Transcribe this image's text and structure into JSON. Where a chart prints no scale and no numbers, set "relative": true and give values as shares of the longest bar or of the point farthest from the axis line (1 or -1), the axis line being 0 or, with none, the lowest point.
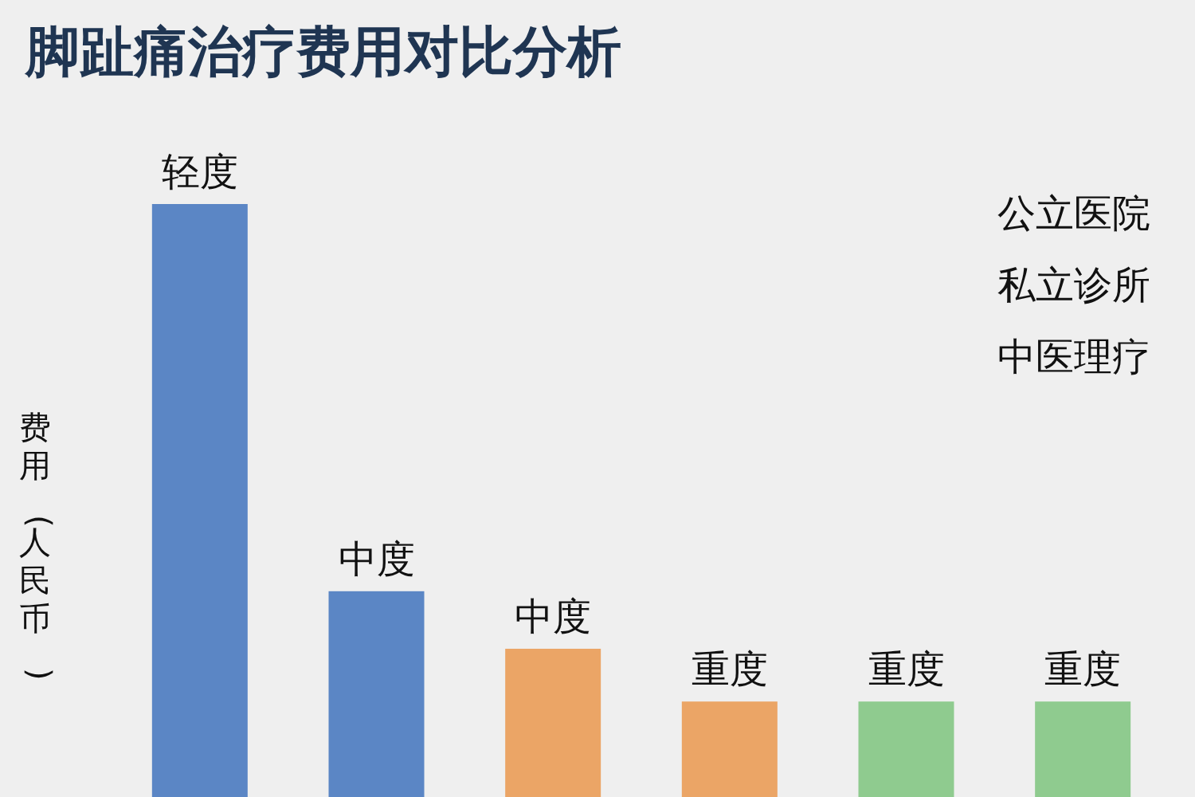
{
  "chart_data": {
    "type": "bar",
    "title": "脚趾痛治疗费用对比分析",
    "ylabel": "费用(人民币)",
    "relative": true,
    "categories": [
      "轻度",
      "中度",
      "中度",
      "重度",
      "重度",
      "重度"
    ],
    "values": [
      1,
      0.347,
      0.25,
      0.161,
      0.161,
      0.161
    ],
    "colors": [
      "#5b86c5",
      "#5b86c5",
      "#eba566",
      "#eba566",
      "#8fcb8f",
      "#8fcb8f"
    ],
    "annotations": [
      "公立医院",
      "私立诊所",
      "中医理疗"
    ]
  }
}
